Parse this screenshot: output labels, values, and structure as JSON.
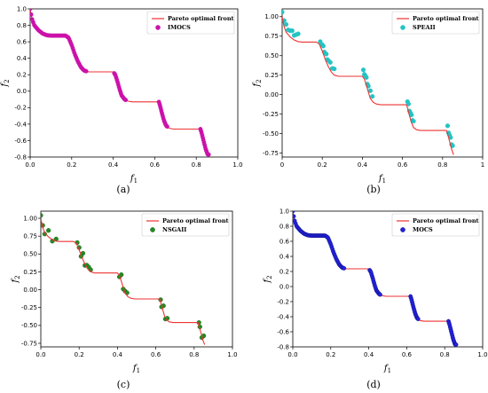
{
  "chart_data": [
    {
      "type": "scatter",
      "caption": "(a)",
      "xlabel": "f1",
      "ylabel": "f2",
      "xlim": [
        0,
        1
      ],
      "ylim": [
        -0.8,
        1.0
      ],
      "xticks": [
        "0.0",
        "0.2",
        "0.4",
        "0.6",
        "0.8",
        "1.0"
      ],
      "yticks": [
        "1.0",
        "0.8",
        "0.6",
        "0.4",
        "0.2",
        "0.0",
        "-0.2",
        "-0.4",
        "-0.6",
        "-0.8"
      ],
      "legend_position": "top-right",
      "front": {
        "name": "Pareto optimal front",
        "color": "#ee3333"
      },
      "points": {
        "name": "IMOCS",
        "color": "#cc11aa",
        "edge": "#cc11aa",
        "radius": 2.2,
        "density": "dense"
      }
    },
    {
      "type": "scatter",
      "caption": "(b)",
      "xlabel": "f1",
      "ylabel": "f2",
      "xlim": [
        0,
        1
      ],
      "ylim": [
        -0.8,
        1.1
      ],
      "xticks": [
        "0",
        "0.2",
        "0.4",
        "0.6",
        "0.8",
        "1"
      ],
      "yticks": [
        "1.00",
        "0.75",
        "0.50",
        "0.25",
        "0.00",
        "-0.25",
        "-0.50",
        "-0.75"
      ],
      "legend_position": "top-right",
      "front": {
        "name": "Pareto optimal front",
        "color": "#ee3333"
      },
      "points": {
        "name": "SPEAII",
        "color": "#22c4c4",
        "edge": "#22c4c4",
        "radius": 2.4,
        "density": "sparse-above"
      }
    },
    {
      "type": "scatter",
      "caption": "(c)",
      "xlabel": "f1",
      "ylabel": "f2",
      "xlim": [
        0,
        1
      ],
      "ylim": [
        -0.8,
        1.1
      ],
      "xticks": [
        "0.0",
        "0.2",
        "0.4",
        "0.6",
        "0.8",
        "1.0"
      ],
      "yticks": [
        "1.00",
        "0.75",
        "0.50",
        "0.25",
        "0.00",
        "-0.25",
        "-0.50",
        "-0.75"
      ],
      "legend_position": "top-right",
      "front": {
        "name": "Pareto optimal front",
        "color": "#ee3333"
      },
      "points": {
        "name": "NSGAII",
        "color": "#228b22",
        "edge": "#1a5c1a",
        "radius": 2.4,
        "density": "sparse-around"
      }
    },
    {
      "type": "scatter",
      "caption": "(d)",
      "xlabel": "f1",
      "ylabel": "f2",
      "xlim": [
        0,
        1
      ],
      "ylim": [
        -0.8,
        1.0
      ],
      "xticks": [
        "0.0",
        "0.2",
        "0.4",
        "0.6",
        "0.8",
        "1.0"
      ],
      "yticks": [
        "1.0",
        "0.8",
        "0.6",
        "0.4",
        "0.2",
        "0.0",
        "-0.2",
        "-0.4",
        "-0.6",
        "-0.8"
      ],
      "legend_position": "top-right",
      "front": {
        "name": "Pareto optimal front",
        "color": "#ee3333"
      },
      "points": {
        "name": "MOCS",
        "color": "#2222dd",
        "edge": "#111188",
        "radius": 2.2,
        "density": "dense"
      }
    }
  ]
}
